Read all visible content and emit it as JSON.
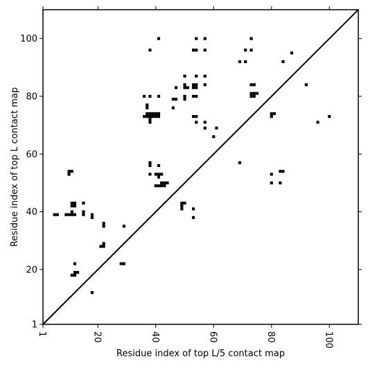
{
  "chart_data": {
    "type": "scatter",
    "xlabel": "Residue index of top L/5 contact map",
    "ylabel": "Residue index of top L contact map",
    "xlim": [
      1,
      110
    ],
    "ylim": [
      1,
      110
    ],
    "xticks": [
      1,
      20,
      40,
      60,
      80,
      100
    ],
    "yticks": [
      1,
      20,
      40,
      60,
      80,
      100
    ],
    "x_tick_rotation": 90,
    "diagonal": true,
    "marker": "square",
    "color": "#000000",
    "points": [
      [
        41,
        100
      ],
      [
        54,
        100
      ],
      [
        57,
        100
      ],
      [
        73,
        100
      ],
      [
        38,
        96
      ],
      [
        53,
        96
      ],
      [
        54,
        96
      ],
      [
        57,
        96
      ],
      [
        71,
        96
      ],
      [
        73,
        96
      ],
      [
        87,
        95
      ],
      [
        69,
        92
      ],
      [
        71,
        92
      ],
      [
        84,
        92
      ],
      [
        50,
        87
      ],
      [
        54,
        87
      ],
      [
        57,
        87
      ],
      [
        50,
        84
      ],
      [
        53,
        84
      ],
      [
        54,
        84
      ],
      [
        57,
        84
      ],
      [
        73,
        84
      ],
      [
        74,
        84
      ],
      [
        92,
        84
      ],
      [
        47,
        83
      ],
      [
        50,
        83
      ],
      [
        51,
        83
      ],
      [
        53,
        83
      ],
      [
        54,
        83
      ],
      [
        73,
        81
      ],
      [
        74,
        81
      ],
      [
        75,
        81
      ],
      [
        36,
        80
      ],
      [
        38,
        80
      ],
      [
        41,
        80
      ],
      [
        50,
        80
      ],
      [
        53,
        80
      ],
      [
        54,
        80
      ],
      [
        73,
        80
      ],
      [
        74,
        80
      ],
      [
        46,
        79
      ],
      [
        47,
        79
      ],
      [
        50,
        79
      ],
      [
        37,
        77
      ],
      [
        37,
        76
      ],
      [
        46,
        76
      ],
      [
        80,
        74
      ],
      [
        81,
        74
      ],
      [
        36,
        73
      ],
      [
        37,
        73
      ],
      [
        38,
        73
      ],
      [
        39,
        73
      ],
      [
        40,
        73
      ],
      [
        41,
        73
      ],
      [
        53,
        73
      ],
      [
        54,
        73
      ],
      [
        80,
        73
      ],
      [
        100,
        73
      ],
      [
        37,
        74
      ],
      [
        38,
        74
      ],
      [
        39,
        74
      ],
      [
        40,
        74
      ],
      [
        41,
        74
      ],
      [
        38,
        72
      ],
      [
        38,
        71
      ],
      [
        54,
        71
      ],
      [
        57,
        71
      ],
      [
        96,
        71
      ],
      [
        57,
        69
      ],
      [
        61,
        69
      ],
      [
        60,
        66
      ],
      [
        69,
        57
      ],
      [
        38,
        57
      ],
      [
        38,
        56
      ],
      [
        41,
        56
      ],
      [
        10,
        54
      ],
      [
        11,
        54
      ],
      [
        83,
        54
      ],
      [
        84,
        54
      ],
      [
        10,
        53
      ],
      [
        38,
        53
      ],
      [
        40,
        53
      ],
      [
        41,
        53
      ],
      [
        42,
        53
      ],
      [
        80,
        53
      ],
      [
        41,
        52
      ],
      [
        42,
        50
      ],
      [
        43,
        50
      ],
      [
        44,
        50
      ],
      [
        80,
        50
      ],
      [
        83,
        50
      ],
      [
        40,
        49
      ],
      [
        41,
        49
      ],
      [
        42,
        49
      ],
      [
        43,
        49
      ],
      [
        49,
        43
      ],
      [
        50,
        43
      ],
      [
        11,
        43
      ],
      [
        12,
        43
      ],
      [
        15,
        43
      ],
      [
        11,
        42
      ],
      [
        12,
        42
      ],
      [
        49,
        42
      ],
      [
        49,
        41
      ],
      [
        53,
        41
      ],
      [
        11,
        40
      ],
      [
        15,
        40
      ],
      [
        5,
        39
      ],
      [
        6,
        39
      ],
      [
        9,
        39
      ],
      [
        10,
        39
      ],
      [
        11,
        39
      ],
      [
        12,
        39
      ],
      [
        15,
        39
      ],
      [
        18,
        39
      ],
      [
        18,
        38
      ],
      [
        53,
        38
      ],
      [
        22,
        36
      ],
      [
        22,
        35
      ],
      [
        29,
        35
      ],
      [
        22,
        29
      ],
      [
        21,
        28
      ],
      [
        22,
        28
      ],
      [
        28,
        22
      ],
      [
        29,
        22
      ],
      [
        12,
        22
      ],
      [
        12,
        19
      ],
      [
        13,
        19
      ],
      [
        11,
        18
      ],
      [
        12,
        18
      ],
      [
        18,
        12
      ]
    ]
  }
}
